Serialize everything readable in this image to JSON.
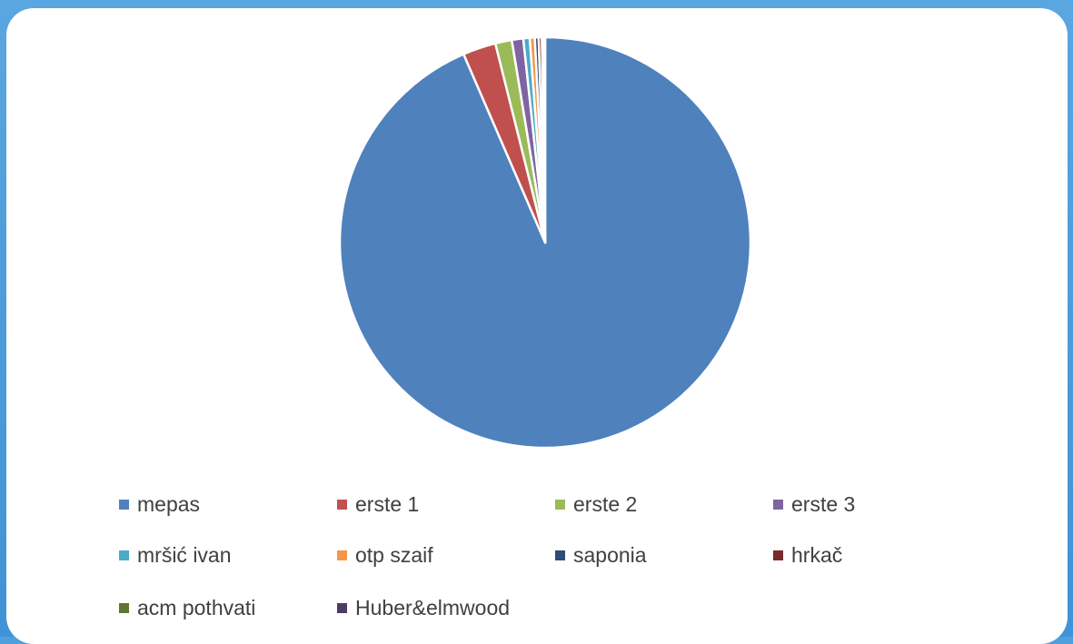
{
  "chart_data": {
    "type": "pie",
    "title": "",
    "legend_position": "bottom",
    "slices": [
      {
        "label": "mepas",
        "value": 93.5,
        "color": "#4f81bd"
      },
      {
        "label": "erste 1",
        "value": 2.6,
        "color": "#c0504d"
      },
      {
        "label": "erste 2",
        "value": 1.3,
        "color": "#9bbb59"
      },
      {
        "label": "erste 3",
        "value": 0.9,
        "color": "#8064a2"
      },
      {
        "label": "mršić ivan",
        "value": 0.5,
        "color": "#4bacc6"
      },
      {
        "label": "otp szaif",
        "value": 0.4,
        "color": "#f79646"
      },
      {
        "label": "saponia",
        "value": 0.3,
        "color": "#2c4d75"
      },
      {
        "label": "hrkač",
        "value": 0.25,
        "color": "#772c2a"
      },
      {
        "label": "acm pothvati",
        "value": 0.15,
        "color": "#5f7530"
      },
      {
        "label": "Huber&elmwood",
        "value": 0.1,
        "color": "#4d3b62"
      }
    ]
  }
}
